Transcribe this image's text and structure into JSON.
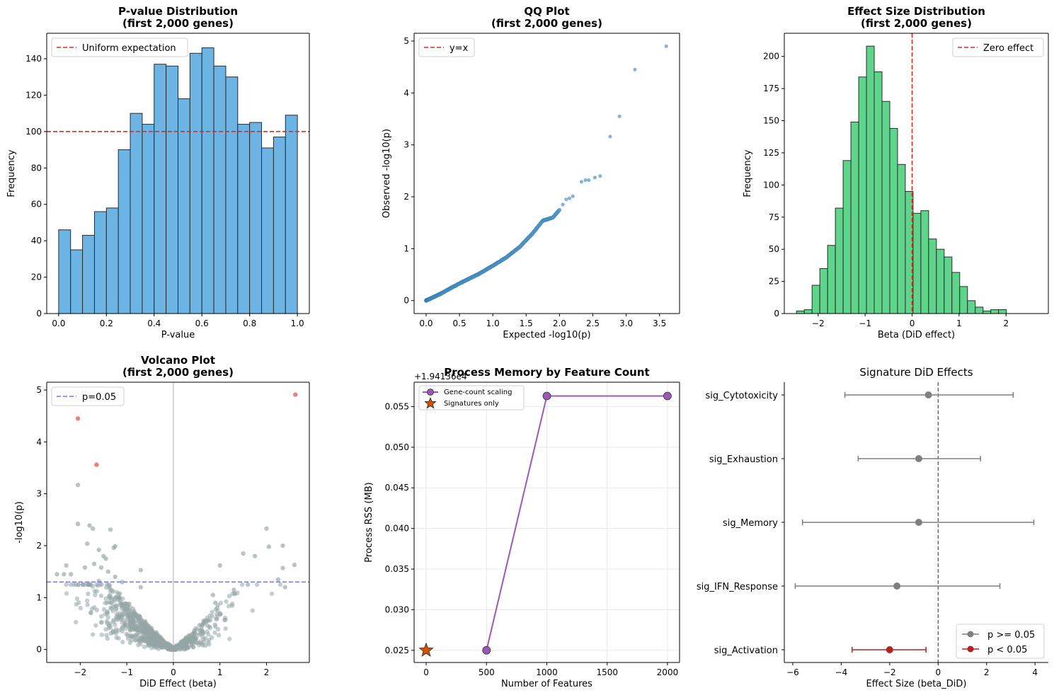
{
  "chart_data": [
    {
      "id": "pvalue-hist",
      "type": "bar",
      "title": "P-value Distribution\n(first 2,000 genes)",
      "xlabel": "P-value",
      "ylabel": "Frequency",
      "xlim": [
        -0.05,
        1.05
      ],
      "ylim": [
        0,
        154
      ],
      "xticks": [
        0.0,
        0.2,
        0.4,
        0.6,
        0.8,
        1.0
      ],
      "xtick_labels": [
        "0.0",
        "0.2",
        "0.4",
        "0.6",
        "0.8",
        "1.0"
      ],
      "yticks": [
        0,
        20,
        40,
        60,
        80,
        100,
        120,
        140
      ],
      "bin_start": 0.0,
      "bin_width": 0.05,
      "values": [
        46,
        35,
        43,
        56,
        58,
        90,
        110,
        104,
        137,
        136,
        118,
        143,
        146,
        136,
        130,
        104,
        105,
        91,
        97,
        109
      ],
      "bar_color": "#6cb4e4",
      "reference_line": {
        "orient": "h",
        "value": 100,
        "color": "#e8261d",
        "label": "Uniform expectation"
      },
      "legend": "upper left"
    },
    {
      "id": "qq-plot",
      "type": "scatter",
      "title": "QQ Plot\n(first 2,000 genes)",
      "xlabel": "Expected -log10(p)",
      "ylabel": "Observed -log10(p)",
      "xlim": [
        -0.18,
        3.8
      ],
      "ylim": [
        -0.25,
        5.15
      ],
      "xticks": [
        0.0,
        0.5,
        1.0,
        1.5,
        2.0,
        2.5,
        3.0,
        3.5
      ],
      "xtick_labels": [
        "0.0",
        "0.5",
        "1.0",
        "1.5",
        "2.0",
        "2.5",
        "3.0",
        "3.5"
      ],
      "yticks": [
        0,
        1,
        2,
        3,
        4,
        5
      ],
      "trend_points": [
        [
          0.0,
          0.0
        ],
        [
          0.2,
          0.12
        ],
        [
          0.5,
          0.33
        ],
        [
          0.8,
          0.52
        ],
        [
          1.0,
          0.67
        ],
        [
          1.2,
          0.83
        ],
        [
          1.4,
          1.03
        ],
        [
          1.6,
          1.3
        ],
        [
          1.75,
          1.54
        ],
        [
          1.9,
          1.6
        ],
        [
          2.0,
          1.75
        ]
      ],
      "points": [
        [
          2.05,
          1.85
        ],
        [
          2.1,
          1.95
        ],
        [
          2.15,
          1.97
        ],
        [
          2.2,
          2.01
        ],
        [
          2.33,
          2.29
        ],
        [
          2.39,
          2.32
        ],
        [
          2.44,
          2.32
        ],
        [
          2.53,
          2.37
        ],
        [
          2.61,
          2.4
        ],
        [
          2.76,
          3.16
        ],
        [
          2.9,
          3.55
        ],
        [
          3.13,
          4.45
        ],
        [
          3.6,
          4.9
        ]
      ],
      "point_color": "#5b9ecb",
      "reference_line": {
        "orient": "diag",
        "color": "#e8261d",
        "label": "y=x"
      },
      "legend": "upper left"
    },
    {
      "id": "effect-hist",
      "type": "bar",
      "title": "Effect Size Distribution\n(first 2,000 genes)",
      "xlabel": "Beta (DiD effect)",
      "ylabel": "Frequency",
      "xlim": [
        -2.72,
        2.9
      ],
      "ylim": [
        0,
        218
      ],
      "xticks": [
        -2,
        -1,
        0,
        1,
        2
      ],
      "xtick_labels": [
        "−2",
        "−1",
        "0",
        "1",
        "2"
      ],
      "yticks": [
        0,
        25,
        50,
        75,
        100,
        125,
        150,
        175,
        200
      ],
      "bin_start": -2.46,
      "bin_width": 0.1654,
      "values": [
        2,
        3,
        22,
        35,
        53,
        82,
        119,
        149,
        184,
        208,
        188,
        165,
        144,
        116,
        95,
        78,
        80,
        58,
        50,
        44,
        32,
        21,
        10,
        5,
        2,
        3,
        3
      ],
      "bar_color": "#5fd48b",
      "reference_line": {
        "orient": "v",
        "value": 0,
        "color": "#e8261d",
        "label": "Zero effect"
      },
      "legend": "upper right"
    },
    {
      "id": "volcano",
      "type": "scatter",
      "title": "Volcano Plot\n(first 2,000 genes)",
      "xlabel": "DiD Effect (beta)",
      "ylabel": "-log10(p)",
      "xlim": [
        -2.72,
        2.92
      ],
      "ylim": [
        -0.25,
        5.15
      ],
      "xticks": [
        -2,
        -1,
        0,
        1,
        2
      ],
      "xtick_labels": [
        "−2",
        "−1",
        "0",
        "1",
        "2"
      ],
      "yticks": [
        0,
        1,
        2,
        3,
        4,
        5
      ],
      "ns_color": "#95a5a6",
      "sig_color": "#e74c3c",
      "significant_points": [
        [
          -2.05,
          4.45
        ],
        [
          -1.65,
          3.56
        ],
        [
          2.62,
          4.91
        ]
      ],
      "scattered_points": [
        [
          -2.05,
          3.17
        ],
        [
          -2.05,
          2.42
        ],
        [
          -1.8,
          2.39
        ],
        [
          -1.73,
          2.33
        ],
        [
          -1.35,
          2.31
        ],
        [
          -1.25,
          1.99
        ],
        [
          -1.28,
          1.96
        ],
        [
          -1.85,
          2.04
        ],
        [
          -1.6,
          1.92
        ],
        [
          -1.5,
          1.8
        ],
        [
          -1.45,
          1.75
        ],
        [
          -1.7,
          1.65
        ],
        [
          -1.9,
          1.58
        ],
        [
          -2.2,
          1.45
        ],
        [
          -2.35,
          1.45
        ],
        [
          -2.5,
          1.45
        ],
        [
          -2.3,
          1.62
        ],
        [
          -1.55,
          1.58
        ],
        [
          -1.4,
          1.5
        ],
        [
          -0.7,
          1.53
        ],
        [
          -1.25,
          1.4
        ],
        [
          -1.1,
          1.3
        ],
        [
          -0.7,
          1.2
        ],
        [
          -1.6,
          1.32
        ],
        [
          -1.8,
          1.25
        ],
        [
          1.0,
          1.62
        ],
        [
          1.5,
          1.85
        ],
        [
          1.75,
          1.8
        ],
        [
          2.0,
          2.33
        ],
        [
          2.05,
          1.98
        ],
        [
          2.35,
          2.0
        ],
        [
          2.6,
          1.63
        ],
        [
          2.35,
          1.57
        ],
        [
          2.25,
          1.35
        ],
        [
          2.4,
          1.2
        ],
        [
          1.6,
          1.25
        ],
        [
          1.3,
          1.15
        ],
        [
          0.9,
          0.9
        ],
        [
          0.85,
          1.05
        ]
      ],
      "envelope_a": 0.9,
      "envelope_power": 1.1,
      "cloud_count": 900,
      "x_sd": 0.72,
      "x_mean": -0.4,
      "reference_line": {
        "orient": "h",
        "value": 1.301,
        "color": "#7777ee",
        "label": "p=0.05"
      },
      "zero_line": {
        "orient": "v",
        "value": 0
      },
      "legend": "upper left"
    },
    {
      "id": "memory",
      "type": "line",
      "title": "Process Memory by Feature Count",
      "offset_text": "+1.94136e4",
      "xlabel": "Number of Features",
      "ylabel": "Process RSS (MB)",
      "xlim": [
        -100,
        2100
      ],
      "ylim": [
        0.0235,
        0.058
      ],
      "xticks": [
        0,
        500,
        1000,
        1500,
        2000
      ],
      "xtick_labels": [
        "0",
        "500",
        "1000",
        "1500",
        "2000"
      ],
      "yticks": [
        0.025,
        0.03,
        0.035,
        0.04,
        0.045,
        0.05,
        0.055
      ],
      "ytick_labels": [
        "0.025",
        "0.030",
        "0.035",
        "0.040",
        "0.045",
        "0.050",
        "0.055"
      ],
      "series": [
        {
          "name": "Gene-count scaling",
          "x": [
            500,
            1000,
            2000
          ],
          "y": [
            0.025,
            0.0563,
            0.0563
          ],
          "color": "#9b59b6"
        },
        {
          "name": "Signatures only",
          "x": [
            0
          ],
          "y": [
            0.025
          ],
          "color": "#d35400"
        }
      ],
      "grid": true,
      "legend": "upper left"
    },
    {
      "id": "signature",
      "type": "errorbar",
      "title": "Signature DiD Effects",
      "xlabel": "Effect Size (beta_DiD)",
      "ylabel": "",
      "xlim": [
        -6.35,
        4.55
      ],
      "xticks": [
        -6,
        -4,
        -2,
        0,
        2,
        4
      ],
      "xtick_labels": [
        "−6",
        "−4",
        "−2",
        "0",
        "2",
        "4"
      ],
      "categories": [
        "sig_Cytotoxicity",
        "sig_Exhaustion",
        "sig_Memory",
        "sig_IFN_Response",
        "sig_Activation"
      ],
      "estimates": [
        -0.4,
        -0.8,
        -0.8,
        -1.7,
        -2.0
      ],
      "ci_low": [
        -3.85,
        -3.3,
        -5.6,
        -5.9,
        -3.55
      ],
      "ci_high": [
        3.1,
        1.75,
        3.95,
        2.55,
        -0.5
      ],
      "significant": [
        false,
        false,
        false,
        false,
        true
      ],
      "ns_color": "#7f7f7f",
      "sig_color": "#b22222",
      "legend_labels": [
        "p >= 0.05",
        "p < 0.05"
      ],
      "legend": "lower right"
    }
  ]
}
